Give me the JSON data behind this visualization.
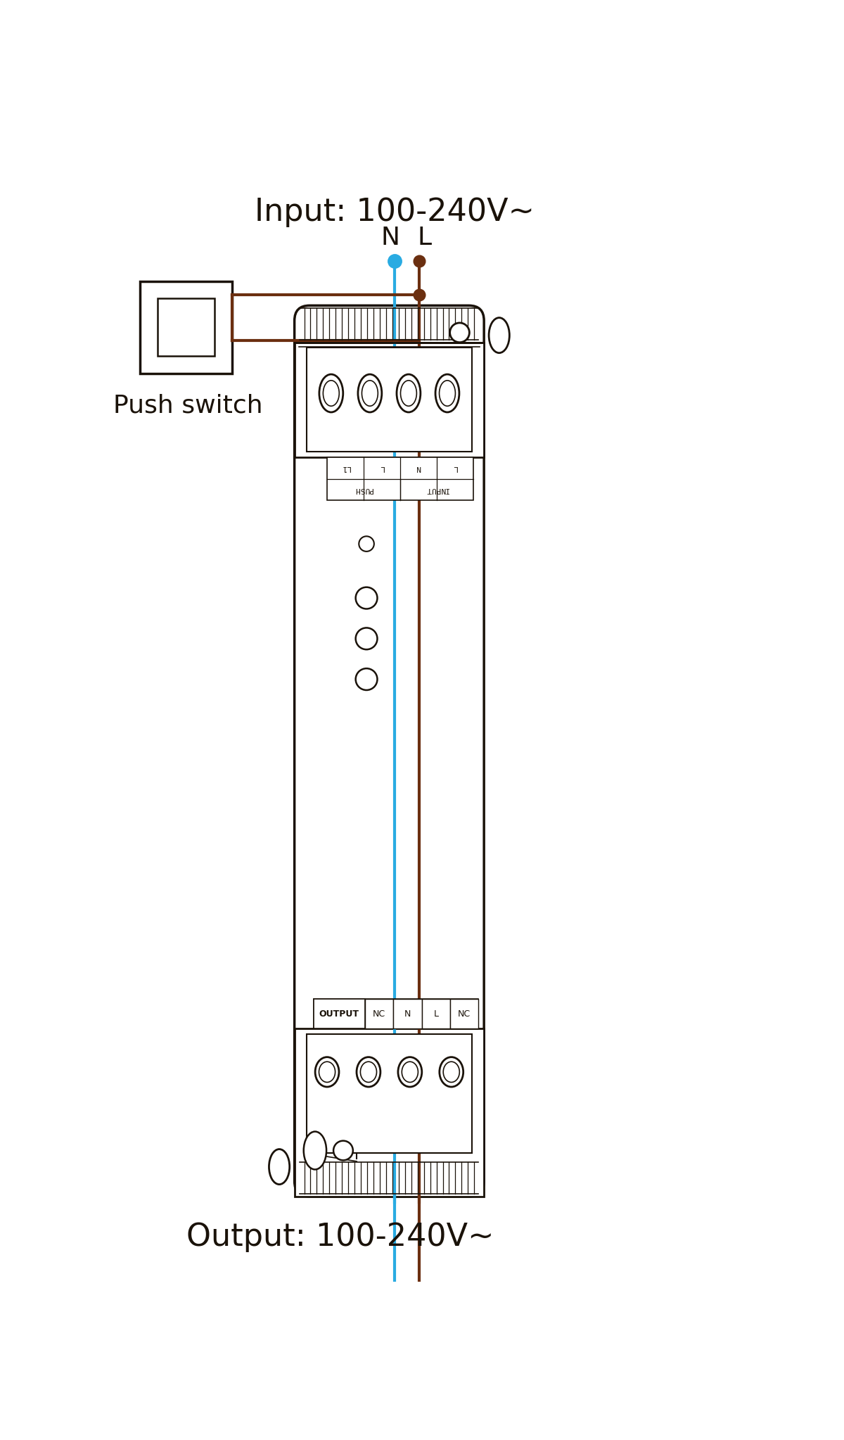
{
  "bg_color": "#ffffff",
  "line_color": "#1a1209",
  "blue_wire": "#29abe2",
  "brown_wire": "#6b2f10",
  "input_text": "Input: 100-240V~",
  "output_text": "Output: 100-240V~",
  "push_switch_text": "Push switch",
  "N_label": "N",
  "L_label": "L",
  "output_nc1": "NC",
  "output_n": "N",
  "output_l": "L",
  "output_nc2": "NC",
  "output_label": "OUTPUT",
  "input_row1": [
    "L1",
    "L",
    "N",
    "L"
  ],
  "input_bot_left": "PUSH",
  "input_bot_right": "INPUT",
  "figsize": [
    12.0,
    20.47
  ],
  "dpi": 100
}
